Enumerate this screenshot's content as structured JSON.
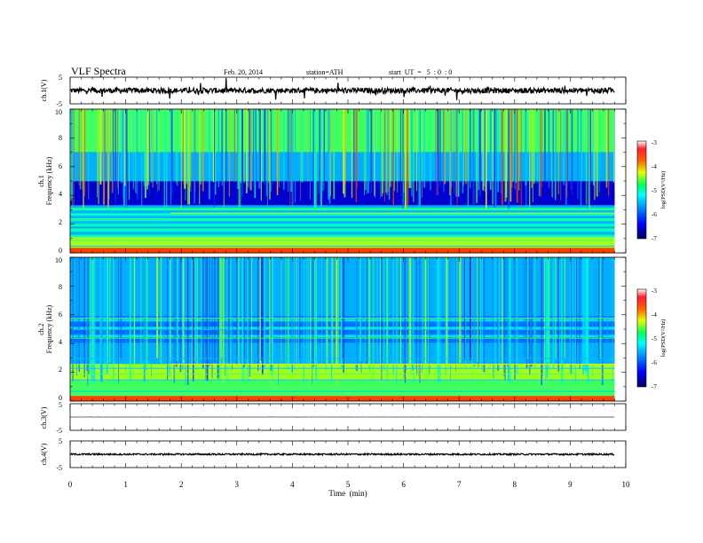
{
  "header": {
    "title": "VLF  Spectra",
    "date": "Feb. 20, 2014",
    "station": "station=ATH",
    "start": "start  UT  =   5  : 0  : 0"
  },
  "colors": {
    "low": "#000080",
    "mid_low": "#0060ff",
    "mid": "#00e0a0",
    "mid_high": "#e8e800",
    "high": "#ff2020",
    "max": "#ffffff"
  },
  "chart_data": [
    {
      "type": "line",
      "ylabel": "ch.1(V)",
      "xlim": [
        0,
        10
      ],
      "ylim": [
        -5,
        5
      ],
      "yticks": [
        "5",
        "-5"
      ],
      "baseline": 0,
      "noise_amplitude": 1,
      "x": [
        0,
        1,
        2,
        3,
        4,
        5,
        6,
        7,
        8,
        9,
        9.8
      ],
      "y": [
        0,
        0,
        0,
        0,
        0,
        0,
        0,
        0,
        0,
        0,
        0
      ]
    },
    {
      "type": "heatmap",
      "ylabel": "ch.1",
      "ylabel2": "Frequency  (kHz)",
      "xlim": [
        0,
        10
      ],
      "data_end_min": 9.8,
      "ylim": [
        0,
        10
      ],
      "yticks": [
        "0",
        "2",
        "4",
        "6",
        "8",
        "10"
      ],
      "colorbar": {
        "label": "log(PSD(V²/Hz)",
        "range": [
          -7,
          -3
        ],
        "ticks": [
          "-3",
          "-4",
          "-5",
          "-6",
          "-7"
        ]
      }
    },
    {
      "type": "heatmap",
      "ylabel": "ch.2",
      "ylabel2": "Frequency  (kHz)",
      "xlim": [
        0,
        10
      ],
      "data_end_min": 9.8,
      "ylim": [
        0,
        10
      ],
      "yticks": [
        "0",
        "2",
        "4",
        "6",
        "8",
        "10"
      ],
      "colorbar": {
        "label": "log(PSD(V²/Hz)",
        "range": [
          -7,
          -3
        ],
        "ticks": [
          "-3",
          "-4",
          "-5",
          "-6",
          "-7"
        ]
      }
    },
    {
      "type": "line",
      "ylabel": "ch.3(V)",
      "xlim": [
        0,
        10
      ],
      "ylim": [
        -5,
        5
      ],
      "yticks": [
        "5",
        "-5"
      ],
      "baseline": 0,
      "noise_amplitude": 0.05,
      "x": [
        0,
        9.8
      ],
      "y": [
        0,
        0
      ]
    },
    {
      "type": "line",
      "ylabel": "ch.4(V)",
      "xlim": [
        0,
        10
      ],
      "ylim": [
        -5,
        5
      ],
      "yticks": [
        "5",
        "-5"
      ],
      "baseline": 0,
      "noise_amplitude": 0.3,
      "x": [
        0,
        9.8
      ],
      "y": [
        0,
        0
      ]
    }
  ],
  "x_axis": {
    "label": "Time  (min)",
    "ticks": [
      "0",
      "1",
      "2",
      "3",
      "4",
      "5",
      "6",
      "7",
      "8",
      "9",
      "10"
    ]
  }
}
